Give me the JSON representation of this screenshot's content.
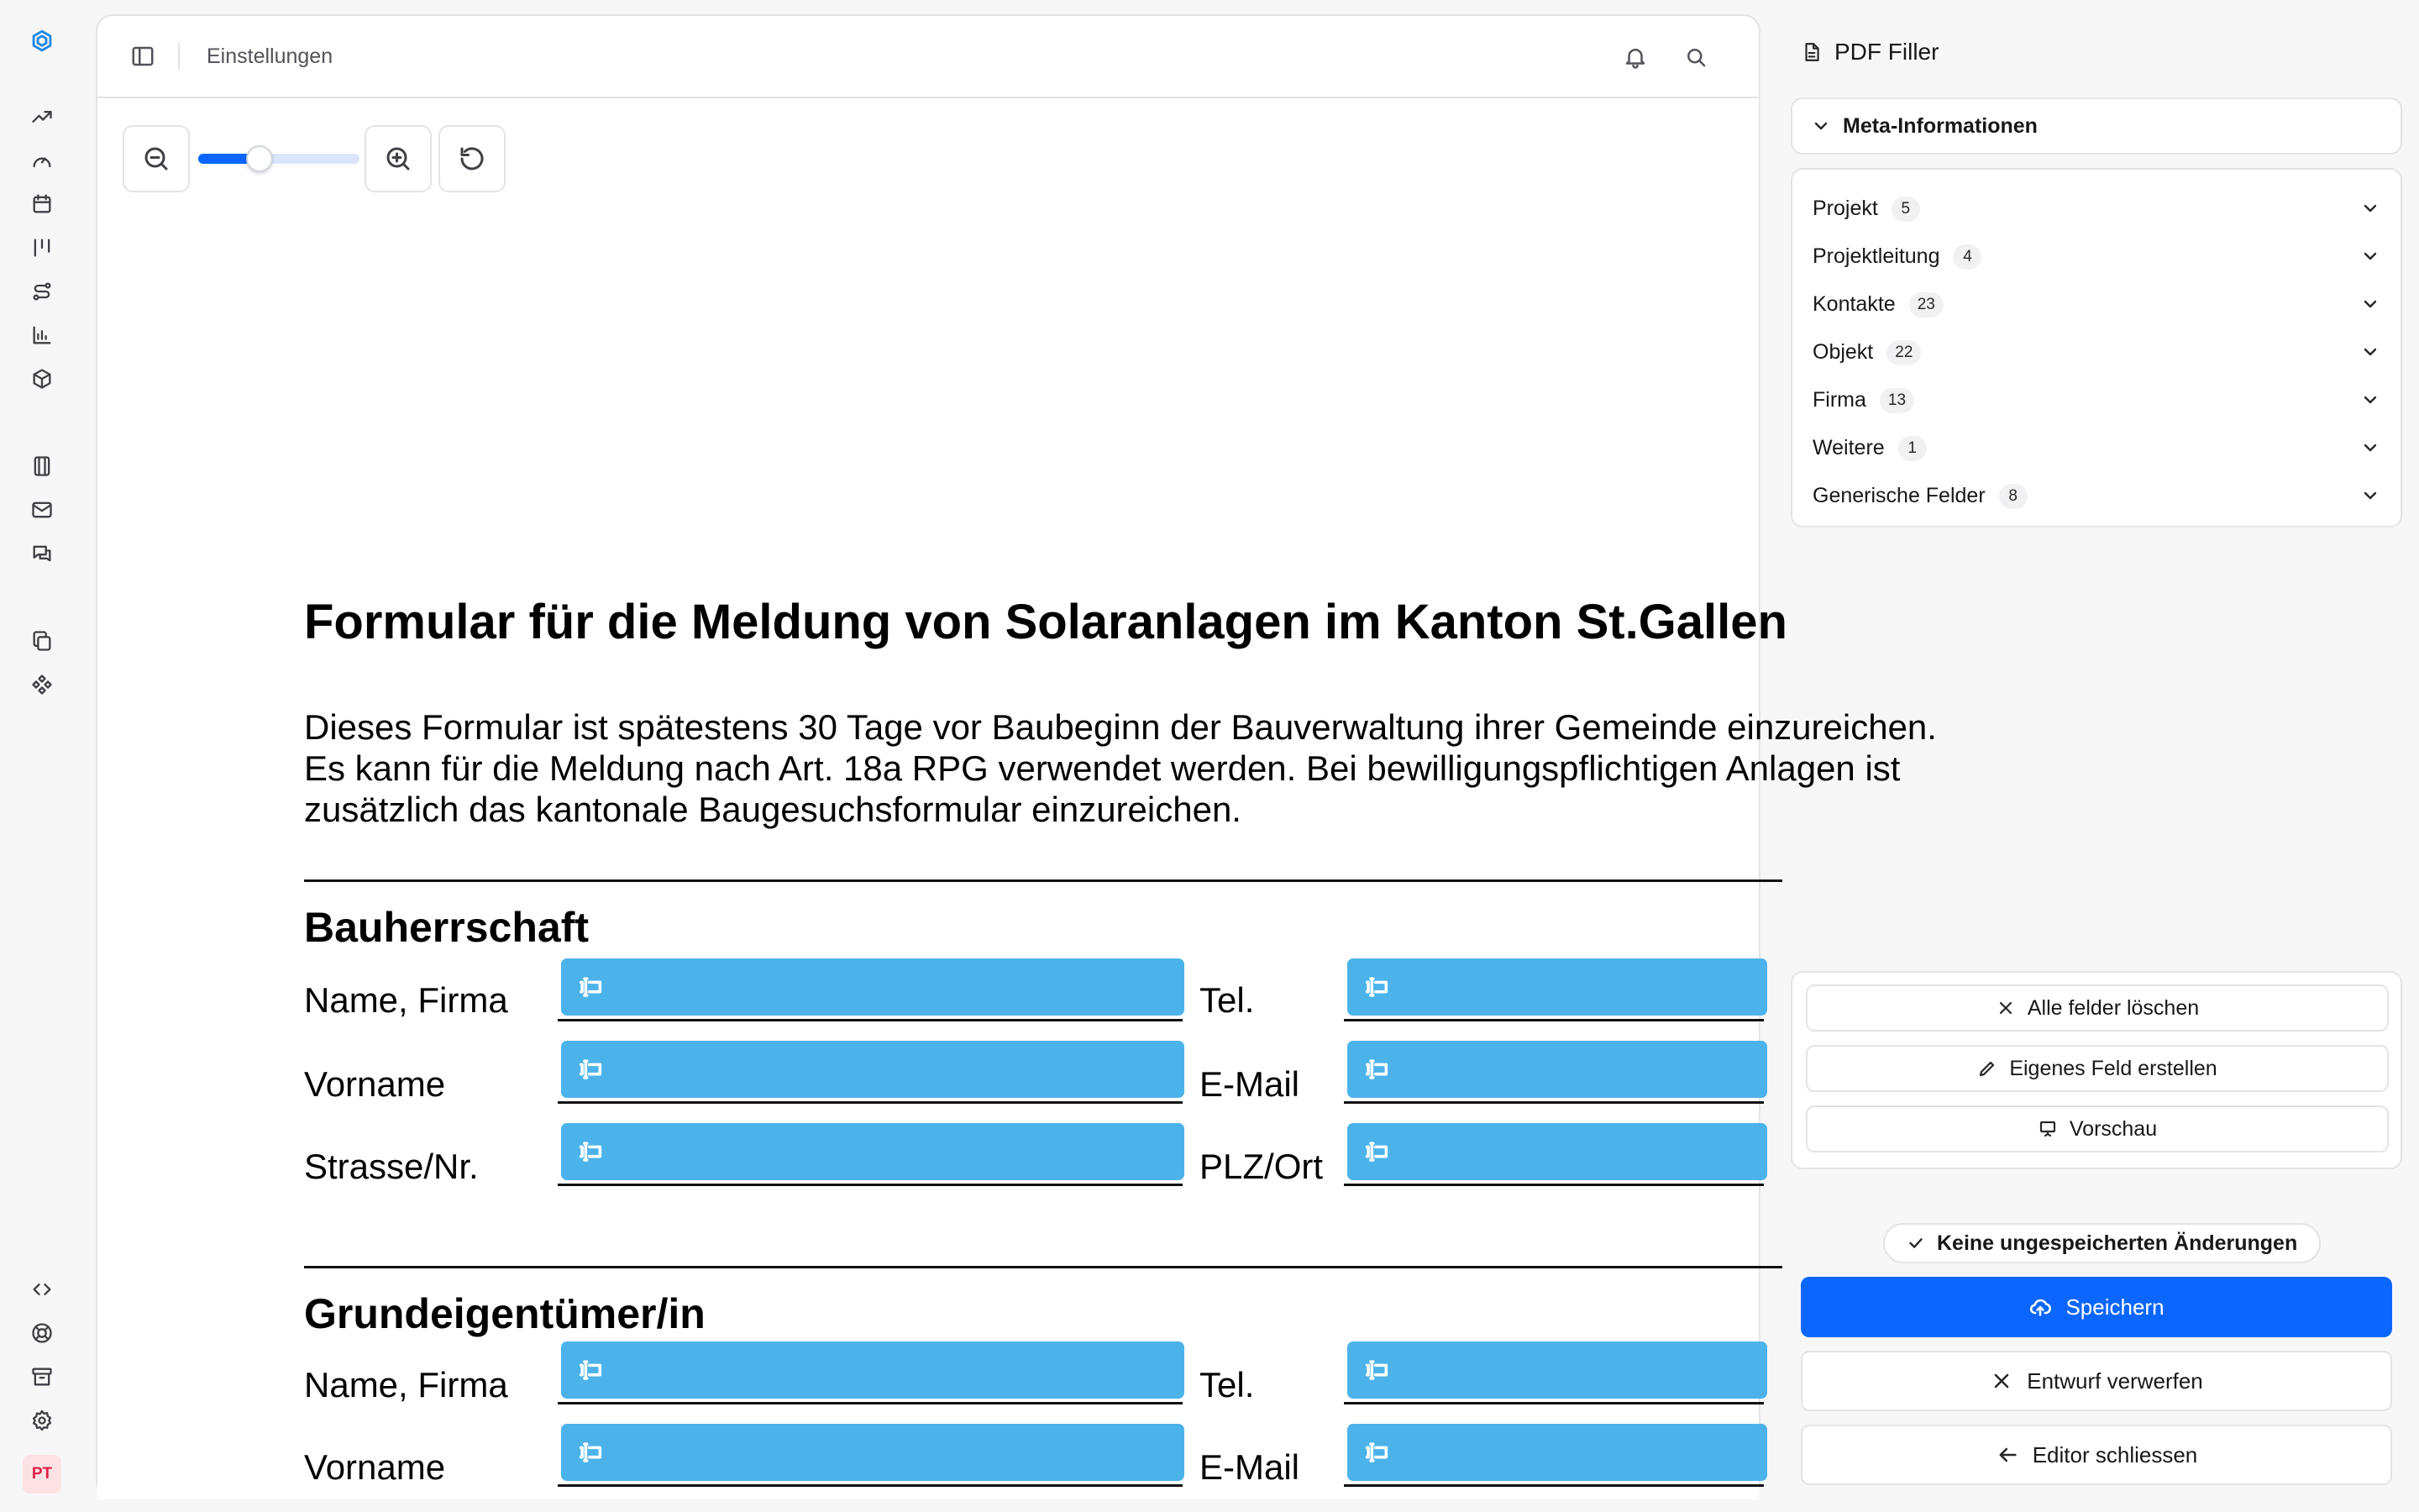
{
  "topbar": {
    "breadcrumb": "Einstellungen"
  },
  "rail": {
    "icons": [
      "logo-icon",
      "trending-icon",
      "gauge-icon",
      "calendar-icon",
      "columns-icon",
      "route-icon",
      "chart-icon",
      "box-icon",
      "file-stack-icon",
      "mail-icon",
      "chat-icon",
      "copy-icon",
      "components-icon",
      "code-icon",
      "lifebuoy-icon",
      "archive-icon",
      "gear-icon"
    ],
    "avatar_initials": "PT",
    "avatar_color": "#e11d48"
  },
  "zoom": {
    "level": 0.38
  },
  "document": {
    "title": "Formular für die Meldung von Solaranlagen im Kanton St.Gallen",
    "paragraph": [
      "Dieses Formular ist spätestens 30 Tage vor Baubeginn der Bauverwaltung ihrer Gemeinde einzureichen.",
      "Es kann für die Meldung nach Art. 18a RPG verwendet werden. Bei bewilligungspflichtigen Anlagen ist",
      "zusätzlich das kantonale Baugesuchsformular einzureichen."
    ],
    "sections": [
      {
        "heading": "Bauherrschaft",
        "rows": [
          {
            "left": "Name, Firma",
            "right": "Tel."
          },
          {
            "left": "Vorname",
            "right": "E-Mail"
          },
          {
            "left": "Strasse/Nr.",
            "right": "PLZ/Ort"
          }
        ]
      },
      {
        "heading": "Grundeigentümer/in",
        "rows": [
          {
            "left": "Name, Firma",
            "right": "Tel."
          },
          {
            "left": "Vorname",
            "right": "E-Mail"
          }
        ]
      }
    ],
    "field_color": "#4cb3ea"
  },
  "panel": {
    "title": "PDF Filler",
    "meta_label": "Meta-Informationen",
    "groups": [
      {
        "label": "Projekt",
        "count": "5"
      },
      {
        "label": "Projektleitung",
        "count": "4"
      },
      {
        "label": "Kontakte",
        "count": "23"
      },
      {
        "label": "Objekt",
        "count": "22"
      },
      {
        "label": "Firma",
        "count": "13"
      },
      {
        "label": "Weitere",
        "count": "1"
      },
      {
        "label": "Generische Felder",
        "count": "8"
      }
    ],
    "actions": {
      "clear": "Alle felder löschen",
      "custom": "Eigenes Feld erstellen",
      "preview": "Vorschau"
    },
    "status": "Keine ungespeicherten Änderungen",
    "save": "Speichern",
    "discard": "Entwurf verwerfen",
    "close": "Editor schliessen",
    "accent": "#0a66ff"
  }
}
